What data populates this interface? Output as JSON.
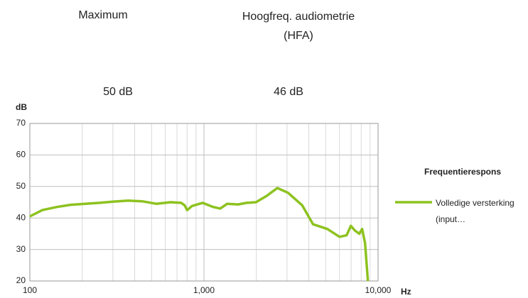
{
  "chart_data": {
    "type": "line",
    "headers": [
      "Maximum",
      "Hoogfreq. audiometrie (HFA)"
    ],
    "header_values": [
      "50 dB",
      "46 dB"
    ],
    "ylabel": "dB",
    "xlabel": "Hz",
    "legend_title": "Frequentierespons",
    "log_x": true,
    "grid": true,
    "xlim": [
      100,
      10000
    ],
    "xticks": [
      100,
      {
        "value": 1000,
        "label": "1,000"
      },
      {
        "value": 10000,
        "label": "10,000"
      }
    ],
    "xminorticks": [
      200,
      300,
      400,
      500,
      600,
      700,
      800,
      900,
      2000,
      3000,
      4000,
      5000,
      6000,
      7000,
      8000,
      9000
    ],
    "ylim": [
      20,
      70
    ],
    "yticks": [
      20,
      30,
      40,
      50,
      60,
      70
    ],
    "x": [
      100,
      118,
      143,
      172,
      208,
      251,
      303,
      366,
      442,
      532,
      643,
      740,
      775,
      800,
      855,
      982,
      1130,
      1240,
      1360,
      1570,
      1760,
      1990,
      2290,
      2640,
      3040,
      3670,
      4230,
      5110,
      6010,
      6600,
      6980,
      7370,
      7800,
      8100,
      8420,
      8740
    ],
    "series": [
      {
        "name": "Volledige versterking (input…",
        "color": "#8dc21f",
        "values": [
          40.5,
          42.5,
          43.5,
          44.2,
          44.5,
          44.8,
          45.2,
          45.5,
          45.3,
          44.5,
          45,
          44.8,
          44,
          42.5,
          43.8,
          44.8,
          43.5,
          43,
          44.5,
          44.3,
          44.8,
          45,
          47,
          49.5,
          48,
          44,
          38,
          36.5,
          34,
          34.5,
          37.5,
          36,
          35,
          36.5,
          32,
          20
        ]
      }
    ]
  }
}
